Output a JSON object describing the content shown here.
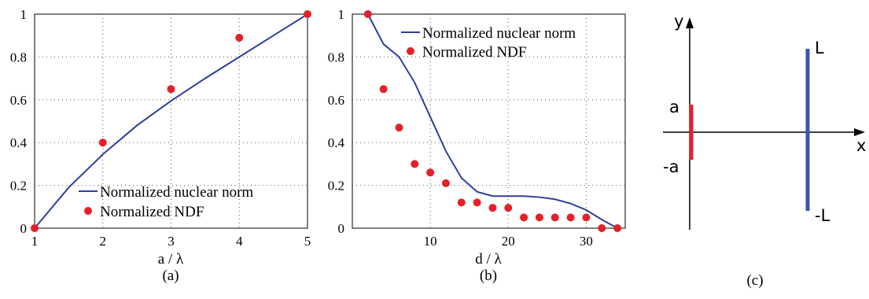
{
  "chart_data": [
    {
      "type": "line",
      "panel_label": "(a)",
      "xlabel": "a / λ",
      "ylabel": "",
      "xlim": [
        1,
        5
      ],
      "ylim": [
        0,
        1
      ],
      "xticks": [
        1,
        2,
        3,
        4,
        5
      ],
      "yticks": [
        0,
        0.2,
        0.4,
        0.6,
        0.8,
        1
      ],
      "ytick_labels": [
        "0",
        "0.2",
        "0.4",
        "0.6",
        "0.8",
        "1"
      ],
      "grid": true,
      "legend_position": "bottom-right",
      "series": [
        {
          "name": "Normalized nuclear norm",
          "kind": "line",
          "color": "#2e3f99",
          "x": [
            1,
            1.5,
            2,
            2.5,
            3,
            3.5,
            4,
            4.5,
            5
          ],
          "y": [
            0,
            0.19,
            0.345,
            0.48,
            0.595,
            0.7,
            0.8,
            0.9,
            1
          ]
        },
        {
          "name": "Normalized NDF",
          "kind": "scatter",
          "color": "#e4202a",
          "x": [
            1,
            2,
            3,
            4,
            5
          ],
          "y": [
            0,
            0.4,
            0.65,
            0.89,
            1
          ]
        }
      ]
    },
    {
      "type": "line",
      "panel_label": "(b)",
      "xlabel": "d / λ",
      "ylabel": "",
      "xlim": [
        0,
        35
      ],
      "ylim": [
        0,
        1
      ],
      "xticks": [
        10,
        20,
        30
      ],
      "yticks": [
        0,
        0.2,
        0.4,
        0.6,
        0.8,
        1
      ],
      "ytick_labels": [
        "0",
        "0.2",
        "0.4",
        "0.6",
        "0.8",
        "1"
      ],
      "grid": true,
      "legend_position": "top-right",
      "series": [
        {
          "name": "Normalized nuclear norm",
          "kind": "line",
          "color": "#2e3f99",
          "x": [
            2,
            4,
            6,
            8,
            10,
            12,
            14,
            16,
            18,
            20,
            22,
            24,
            26,
            28,
            30,
            32,
            34
          ],
          "y": [
            1,
            0.86,
            0.8,
            0.68,
            0.52,
            0.36,
            0.235,
            0.17,
            0.15,
            0.15,
            0.15,
            0.145,
            0.135,
            0.115,
            0.085,
            0.04,
            0
          ]
        },
        {
          "name": "Normalized NDF",
          "kind": "scatter",
          "color": "#e4202a",
          "x": [
            2,
            4,
            6,
            8,
            10,
            12,
            14,
            16,
            18,
            20,
            22,
            24,
            26,
            28,
            30,
            32,
            34
          ],
          "y": [
            1,
            0.65,
            0.47,
            0.3,
            0.26,
            0.21,
            0.12,
            0.12,
            0.095,
            0.095,
            0.05,
            0.05,
            0.05,
            0.05,
            0.05,
            0,
            0
          ]
        }
      ]
    }
  ],
  "diagram": {
    "panel_label": "(c)",
    "x_axis_label": "x",
    "y_axis_label": "y",
    "red_segment_top_label": "a",
    "red_segment_bottom_label": "-a",
    "blue_segment_top_label": "L",
    "blue_segment_bottom_label": "-L",
    "red_color": "#e4202a",
    "blue_color": "#3a55b4"
  }
}
